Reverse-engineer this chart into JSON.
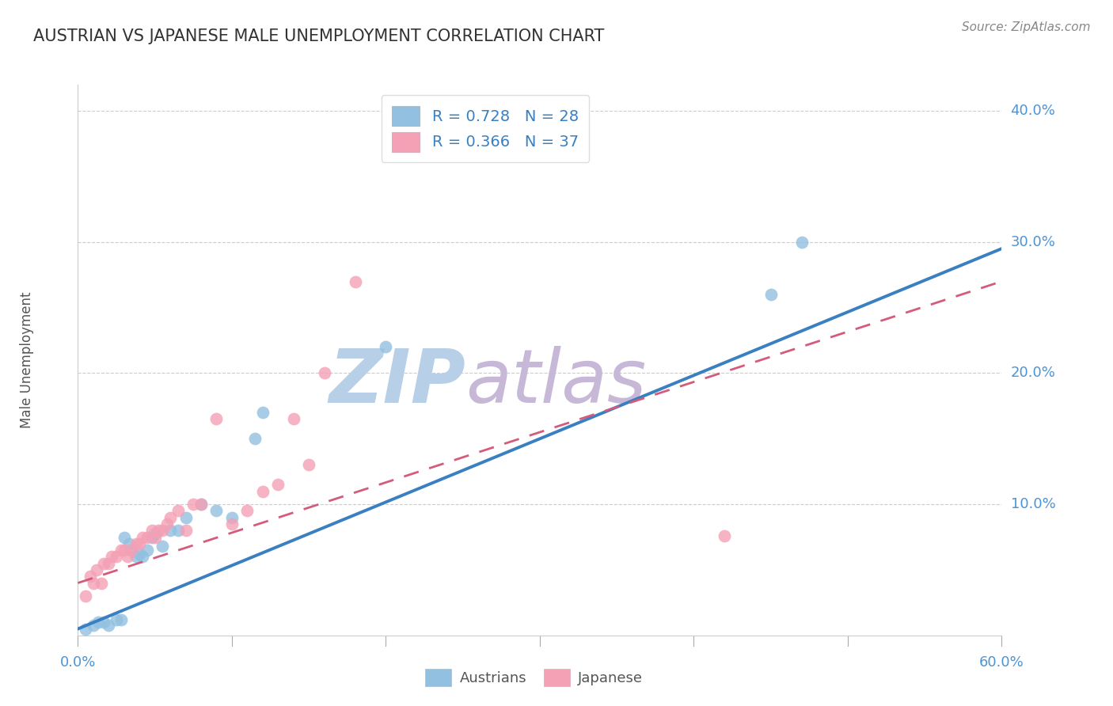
{
  "title": "AUSTRIAN VS JAPANESE MALE UNEMPLOYMENT CORRELATION CHART",
  "source": "Source: ZipAtlas.com",
  "ylabel": "Male Unemployment",
  "x_range": [
    0.0,
    0.6
  ],
  "y_range": [
    0.0,
    0.42
  ],
  "austrians_R": 0.728,
  "austrians_N": 28,
  "japanese_R": 0.366,
  "japanese_N": 37,
  "austrians_color": "#92c0e0",
  "japanese_color": "#f4a0b5",
  "austrians_line_color": "#3a7fc1",
  "japanese_line_color": "#d45c7a",
  "watermark_zip_color": "#b8cfe8",
  "watermark_atlas_color": "#c8b8d8",
  "title_color": "#333333",
  "axis_label_color": "#4d94d4",
  "legend_text_color": "#3a7fc1",
  "legend_N_color": "#3a7fc1",
  "austrians_x": [
    0.005,
    0.01,
    0.013,
    0.017,
    0.02,
    0.025,
    0.028,
    0.03,
    0.033,
    0.035,
    0.038,
    0.04,
    0.042,
    0.045,
    0.048,
    0.05,
    0.055,
    0.06,
    0.065,
    0.07,
    0.08,
    0.09,
    0.1,
    0.115,
    0.12,
    0.2,
    0.45,
    0.47
  ],
  "austrians_y": [
    0.005,
    0.008,
    0.01,
    0.01,
    0.008,
    0.012,
    0.012,
    0.075,
    0.07,
    0.065,
    0.06,
    0.062,
    0.06,
    0.065,
    0.075,
    0.078,
    0.068,
    0.08,
    0.08,
    0.09,
    0.1,
    0.095,
    0.09,
    0.15,
    0.17,
    0.22,
    0.26,
    0.3
  ],
  "japanese_x": [
    0.005,
    0.008,
    0.01,
    0.012,
    0.015,
    0.017,
    0.02,
    0.022,
    0.025,
    0.028,
    0.03,
    0.032,
    0.035,
    0.038,
    0.04,
    0.042,
    0.045,
    0.048,
    0.05,
    0.052,
    0.055,
    0.058,
    0.06,
    0.065,
    0.07,
    0.075,
    0.08,
    0.09,
    0.1,
    0.11,
    0.12,
    0.13,
    0.14,
    0.15,
    0.16,
    0.42,
    0.18
  ],
  "japanese_y": [
    0.03,
    0.045,
    0.04,
    0.05,
    0.04,
    0.055,
    0.055,
    0.06,
    0.06,
    0.065,
    0.065,
    0.06,
    0.065,
    0.07,
    0.07,
    0.075,
    0.075,
    0.08,
    0.075,
    0.08,
    0.08,
    0.085,
    0.09,
    0.095,
    0.08,
    0.1,
    0.1,
    0.165,
    0.085,
    0.095,
    0.11,
    0.115,
    0.165,
    0.13,
    0.2,
    0.076,
    0.27
  ],
  "blue_line_x0": 0.0,
  "blue_line_y0": 0.005,
  "blue_line_x1": 0.6,
  "blue_line_y1": 0.295,
  "pink_line_x0": 0.0,
  "pink_line_y0": 0.04,
  "pink_line_x1": 0.6,
  "pink_line_y1": 0.27
}
